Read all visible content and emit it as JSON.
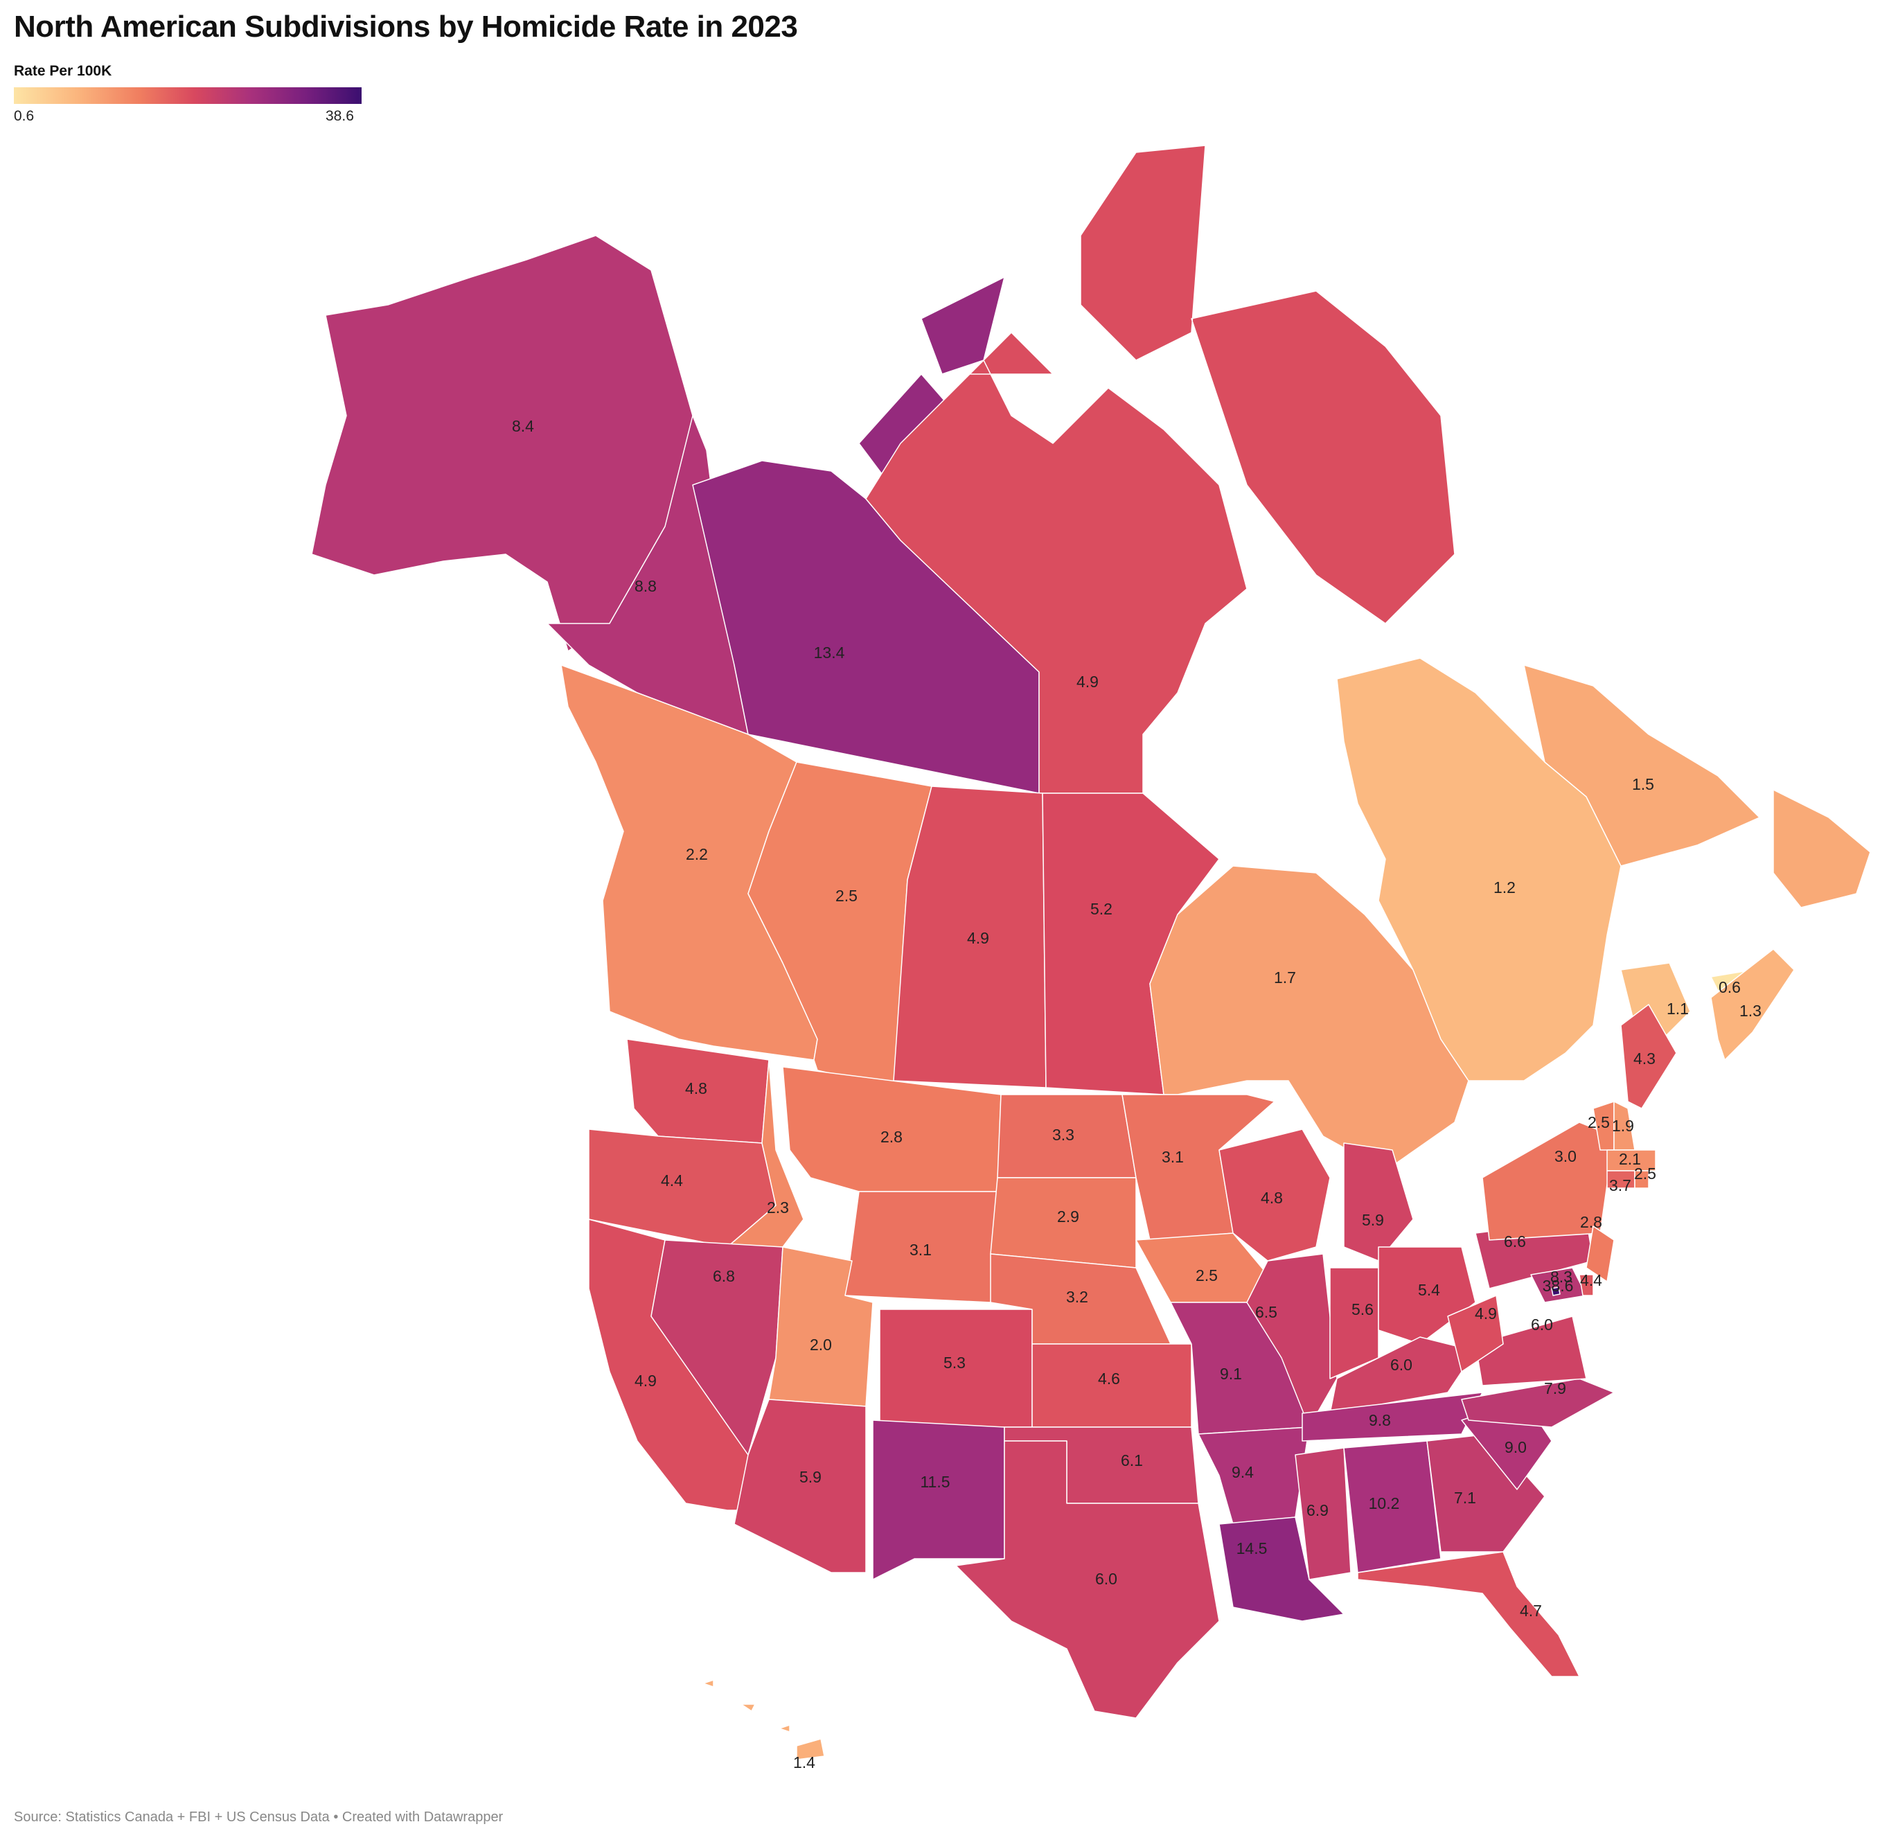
{
  "title": "North American Subdivisions by Homicide Rate in 2023",
  "legend": {
    "title": "Rate Per 100K",
    "min": "0.6",
    "max": "38.6"
  },
  "footer": "Source: Statistics Canada + FBI + US Census Data  • Created with Datawrapper",
  "colors": {
    "low": "#fde4a5",
    "mid": "#e0565f",
    "high": "#3b0f70"
  },
  "regions": [
    {
      "key": "ak",
      "label": "8.4",
      "value": 8.4
    },
    {
      "key": "yt",
      "label": "8.8",
      "value": 8.8
    },
    {
      "key": "nt",
      "label": "13.4",
      "value": 13.4
    },
    {
      "key": "nu",
      "label": "4.9",
      "value": 4.9
    },
    {
      "key": "bc",
      "label": "2.2",
      "value": 2.2
    },
    {
      "key": "ab",
      "label": "2.5",
      "value": 2.5
    },
    {
      "key": "sk",
      "label": "4.9",
      "value": 4.9
    },
    {
      "key": "mb",
      "label": "5.2",
      "value": 5.2
    },
    {
      "key": "on",
      "label": "1.7",
      "value": 1.7
    },
    {
      "key": "qc",
      "label": "1.2",
      "value": 1.2
    },
    {
      "key": "nl",
      "label": "1.5",
      "value": 1.5
    },
    {
      "key": "nb",
      "label": "1.1",
      "value": 1.1
    },
    {
      "key": "pe",
      "label": "0.6",
      "value": 0.6
    },
    {
      "key": "ns",
      "label": "1.3",
      "value": 1.3
    },
    {
      "key": "wa",
      "label": "4.8",
      "value": 4.8
    },
    {
      "key": "or",
      "label": "4.4",
      "value": 4.4
    },
    {
      "key": "ca",
      "label": "4.9",
      "value": 4.9
    },
    {
      "key": "id",
      "label": "2.3",
      "value": 2.3
    },
    {
      "key": "nv",
      "label": "6.8",
      "value": 6.8
    },
    {
      "key": "mt",
      "label": "2.8",
      "value": 2.8
    },
    {
      "key": "wy",
      "label": "3.1",
      "value": 3.1
    },
    {
      "key": "ut",
      "label": "2.0",
      "value": 2.0
    },
    {
      "key": "az",
      "label": "5.9",
      "value": 5.9
    },
    {
      "key": "co",
      "label": "5.3",
      "value": 5.3
    },
    {
      "key": "nm",
      "label": "11.5",
      "value": 11.5
    },
    {
      "key": "nd",
      "label": "3.3",
      "value": 3.3
    },
    {
      "key": "sd",
      "label": "2.9",
      "value": 2.9
    },
    {
      "key": "ne",
      "label": "3.2",
      "value": 3.2
    },
    {
      "key": "ks",
      "label": "4.6",
      "value": 4.6
    },
    {
      "key": "ok",
      "label": "6.1",
      "value": 6.1
    },
    {
      "key": "tx",
      "label": "6.0",
      "value": 6.0
    },
    {
      "key": "mn",
      "label": "3.1",
      "value": 3.1
    },
    {
      "key": "ia",
      "label": "2.5",
      "value": 2.5
    },
    {
      "key": "mo",
      "label": "9.1",
      "value": 9.1
    },
    {
      "key": "ar",
      "label": "9.4",
      "value": 9.4
    },
    {
      "key": "la",
      "label": "14.5",
      "value": 14.5
    },
    {
      "key": "wi",
      "label": "4.8",
      "value": 4.8
    },
    {
      "key": "il",
      "label": "6.5",
      "value": 6.5
    },
    {
      "key": "mi",
      "label": "5.9",
      "value": 5.9
    },
    {
      "key": "in",
      "label": "5.6",
      "value": 5.6
    },
    {
      "key": "oh",
      "label": "5.4",
      "value": 5.4
    },
    {
      "key": "ky",
      "label": "6.0",
      "value": 6.0
    },
    {
      "key": "tn",
      "label": "9.8",
      "value": 9.8
    },
    {
      "key": "ms",
      "label": "6.9",
      "value": 6.9
    },
    {
      "key": "al",
      "label": "10.2",
      "value": 10.2
    },
    {
      "key": "ga",
      "label": "7.1",
      "value": 7.1
    },
    {
      "key": "fl",
      "label": "4.7",
      "value": 4.7
    },
    {
      "key": "sc",
      "label": "9.0",
      "value": 9.0
    },
    {
      "key": "nc",
      "label": "7.9",
      "value": 7.9
    },
    {
      "key": "va",
      "label": "6.0",
      "value": 6.0
    },
    {
      "key": "wv",
      "label": "4.9",
      "value": 4.9
    },
    {
      "key": "pa",
      "label": "6.6",
      "value": 6.6
    },
    {
      "key": "ny",
      "label": "3.0",
      "value": 3.0
    },
    {
      "key": "nj",
      "label": "2.8",
      "value": 2.8
    },
    {
      "key": "md",
      "label": "8.3",
      "value": 8.3
    },
    {
      "key": "dc",
      "label": "38.6",
      "value": 38.6
    },
    {
      "key": "de",
      "label": "4.4",
      "value": 4.4
    },
    {
      "key": "vt",
      "label": "2.5",
      "value": 2.5
    },
    {
      "key": "nh",
      "label": "1.9",
      "value": 1.9
    },
    {
      "key": "ma",
      "label": "2.1",
      "value": 2.1
    },
    {
      "key": "ct",
      "label": "3.7",
      "value": 3.7
    },
    {
      "key": "ri",
      "label": "2.5",
      "value": 2.5
    },
    {
      "key": "me",
      "label": "4.3",
      "value": 4.3
    },
    {
      "key": "hi",
      "label": "1.4",
      "value": 1.4
    }
  ]
}
